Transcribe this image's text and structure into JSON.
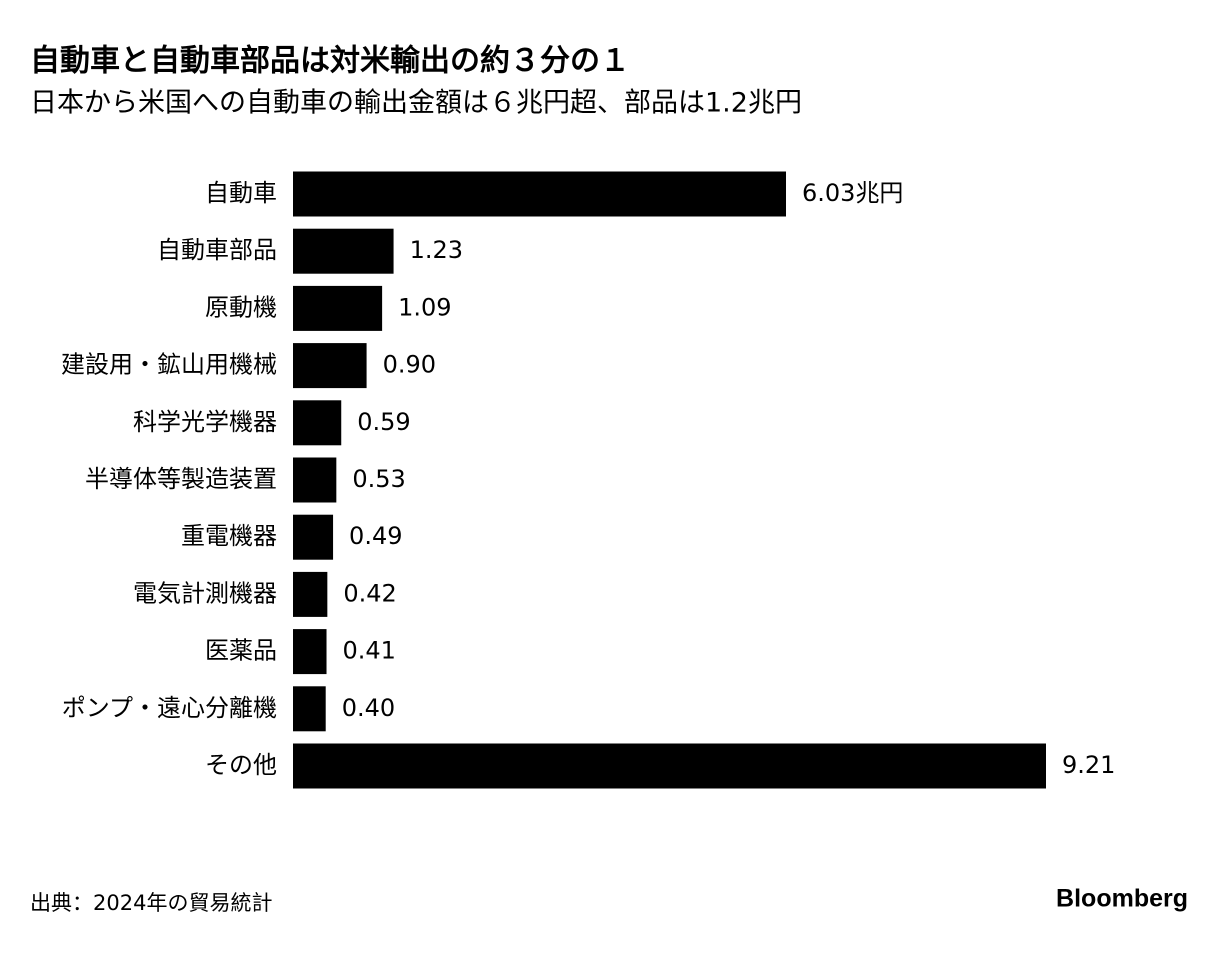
{
  "chart_data": {
    "type": "bar",
    "orientation": "horizontal",
    "title": "自動車と自動車部品は対米輸出の約３分の１",
    "subtitle": "日本から米国への自動車の輸出金額は６兆円超、部品は1.2兆円",
    "categories": [
      "自動車",
      "自動車部品",
      "原動機",
      "建設用・鉱山用機械",
      "科学光学機器",
      "半導体等製造装置",
      "重電機器",
      "電気計測機器",
      "医薬品",
      "ポンプ・遠心分離機",
      "その他"
    ],
    "values": [
      6.03,
      1.23,
      1.09,
      0.9,
      0.59,
      0.53,
      0.49,
      0.42,
      0.41,
      0.4,
      9.21
    ],
    "value_labels": [
      "6.03兆円",
      "1.23",
      "1.09",
      "0.90",
      "0.59",
      "0.53",
      "0.49",
      "0.42",
      "0.41",
      "0.40",
      "9.21"
    ],
    "color": "#000000",
    "source": "出典：2024年の貿易統計",
    "brand": "Bloomberg"
  }
}
